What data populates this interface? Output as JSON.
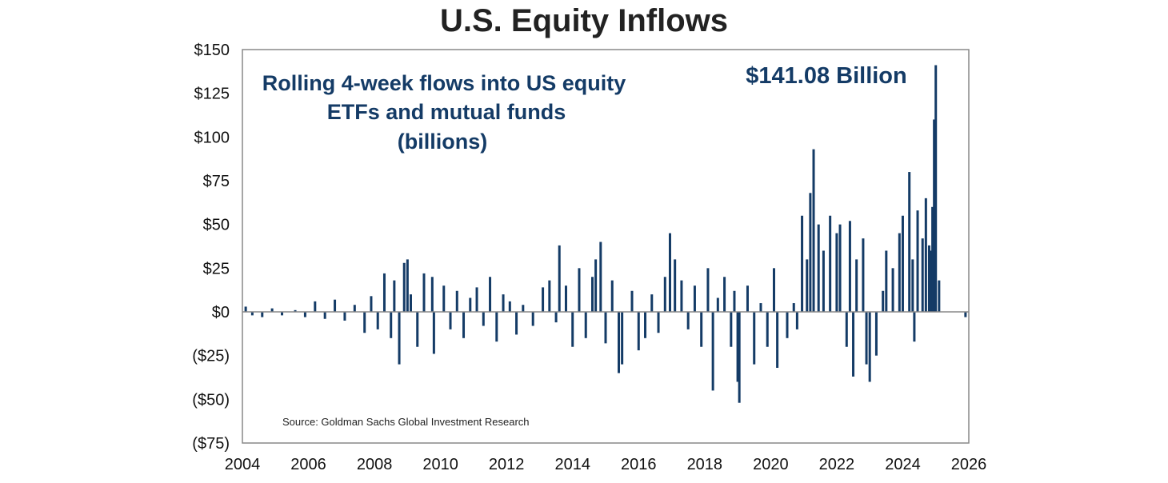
{
  "chart_data": {
    "type": "bar",
    "title": "U.S. Equity Inflows",
    "subtitle_lines": [
      "Rolling 4-week flows into US equity",
      "ETFs and mutual funds",
      "(billions)"
    ],
    "callout": "$141.08 Billion",
    "source": "Source: Goldman Sachs Global Investment Research",
    "x_ticks": [
      "2004",
      "2006",
      "2008",
      "2010",
      "2012",
      "2014",
      "2016",
      "2018",
      "2020",
      "2022",
      "2024",
      "2026"
    ],
    "y_ticks": [
      "$150",
      "$125",
      "$100",
      "$75",
      "$50",
      "$25",
      "$0",
      "($25)",
      "($50)",
      "($75)"
    ],
    "xlim": [
      2004,
      2026
    ],
    "ylim": [
      -75,
      150
    ],
    "grid": false,
    "bar_color": "#143b66",
    "series": [
      {
        "values": [
          [
            2004.1,
            3
          ],
          [
            2004.3,
            -2
          ],
          [
            2004.6,
            -3
          ],
          [
            2004.9,
            2
          ],
          [
            2005.2,
            -2
          ],
          [
            2005.6,
            1
          ],
          [
            2005.9,
            -3
          ],
          [
            2006.2,
            6
          ],
          [
            2006.5,
            -4
          ],
          [
            2006.8,
            7
          ],
          [
            2007.1,
            -5
          ],
          [
            2007.4,
            4
          ],
          [
            2007.7,
            -12
          ],
          [
            2007.9,
            9
          ],
          [
            2008.1,
            -10
          ],
          [
            2008.3,
            22
          ],
          [
            2008.5,
            -15
          ],
          [
            2008.6,
            18
          ],
          [
            2008.75,
            -30
          ],
          [
            2008.9,
            28
          ],
          [
            2009.0,
            30
          ],
          [
            2009.1,
            10
          ],
          [
            2009.3,
            -20
          ],
          [
            2009.5,
            22
          ],
          [
            2009.75,
            20
          ],
          [
            2009.8,
            -24
          ],
          [
            2010.1,
            15
          ],
          [
            2010.3,
            -10
          ],
          [
            2010.5,
            12
          ],
          [
            2010.7,
            -15
          ],
          [
            2010.9,
            8
          ],
          [
            2011.1,
            14
          ],
          [
            2011.3,
            -8
          ],
          [
            2011.5,
            20
          ],
          [
            2011.7,
            -17
          ],
          [
            2011.9,
            10
          ],
          [
            2012.1,
            6
          ],
          [
            2012.3,
            -13
          ],
          [
            2012.5,
            4
          ],
          [
            2012.8,
            -8
          ],
          [
            2013.1,
            14
          ],
          [
            2013.3,
            18
          ],
          [
            2013.5,
            -6
          ],
          [
            2013.6,
            38
          ],
          [
            2013.8,
            15
          ],
          [
            2014.0,
            -20
          ],
          [
            2014.2,
            25
          ],
          [
            2014.4,
            -15
          ],
          [
            2014.6,
            20
          ],
          [
            2014.7,
            30
          ],
          [
            2014.85,
            40
          ],
          [
            2015.0,
            -18
          ],
          [
            2015.2,
            18
          ],
          [
            2015.4,
            -35
          ],
          [
            2015.5,
            -30
          ],
          [
            2015.8,
            12
          ],
          [
            2016.0,
            -22
          ],
          [
            2016.2,
            -15
          ],
          [
            2016.4,
            10
          ],
          [
            2016.6,
            -12
          ],
          [
            2016.8,
            20
          ],
          [
            2016.95,
            45
          ],
          [
            2017.1,
            30
          ],
          [
            2017.3,
            18
          ],
          [
            2017.5,
            -10
          ],
          [
            2017.7,
            15
          ],
          [
            2017.9,
            -20
          ],
          [
            2018.1,
            25
          ],
          [
            2018.25,
            -45
          ],
          [
            2018.4,
            8
          ],
          [
            2018.6,
            20
          ],
          [
            2018.8,
            -20
          ],
          [
            2018.9,
            12
          ],
          [
            2019.0,
            -40
          ],
          [
            2019.05,
            -52
          ],
          [
            2019.3,
            15
          ],
          [
            2019.5,
            -30
          ],
          [
            2019.7,
            5
          ],
          [
            2019.9,
            -20
          ],
          [
            2020.1,
            25
          ],
          [
            2020.2,
            -32
          ],
          [
            2020.5,
            -15
          ],
          [
            2020.7,
            5
          ],
          [
            2020.8,
            -10
          ],
          [
            2020.95,
            55
          ],
          [
            2021.1,
            30
          ],
          [
            2021.2,
            68
          ],
          [
            2021.3,
            93
          ],
          [
            2021.45,
            50
          ],
          [
            2021.6,
            35
          ],
          [
            2021.8,
            55
          ],
          [
            2022.0,
            45
          ],
          [
            2022.1,
            50
          ],
          [
            2022.3,
            -20
          ],
          [
            2022.4,
            52
          ],
          [
            2022.5,
            -37
          ],
          [
            2022.6,
            30
          ],
          [
            2022.8,
            42
          ],
          [
            2022.9,
            -30
          ],
          [
            2023.0,
            -40
          ],
          [
            2023.2,
            -25
          ],
          [
            2023.4,
            12
          ],
          [
            2023.5,
            35
          ],
          [
            2023.7,
            25
          ],
          [
            2023.9,
            45
          ],
          [
            2024.0,
            55
          ],
          [
            2024.2,
            80
          ],
          [
            2024.3,
            30
          ],
          [
            2024.35,
            -17
          ],
          [
            2024.45,
            58
          ],
          [
            2024.6,
            42
          ],
          [
            2024.7,
            65
          ],
          [
            2024.8,
            38
          ],
          [
            2024.85,
            35
          ],
          [
            2024.9,
            60
          ],
          [
            2024.95,
            110
          ],
          [
            2025.0,
            141.08
          ],
          [
            2025.1,
            18
          ],
          [
            2025.9,
            -3
          ]
        ]
      }
    ]
  }
}
